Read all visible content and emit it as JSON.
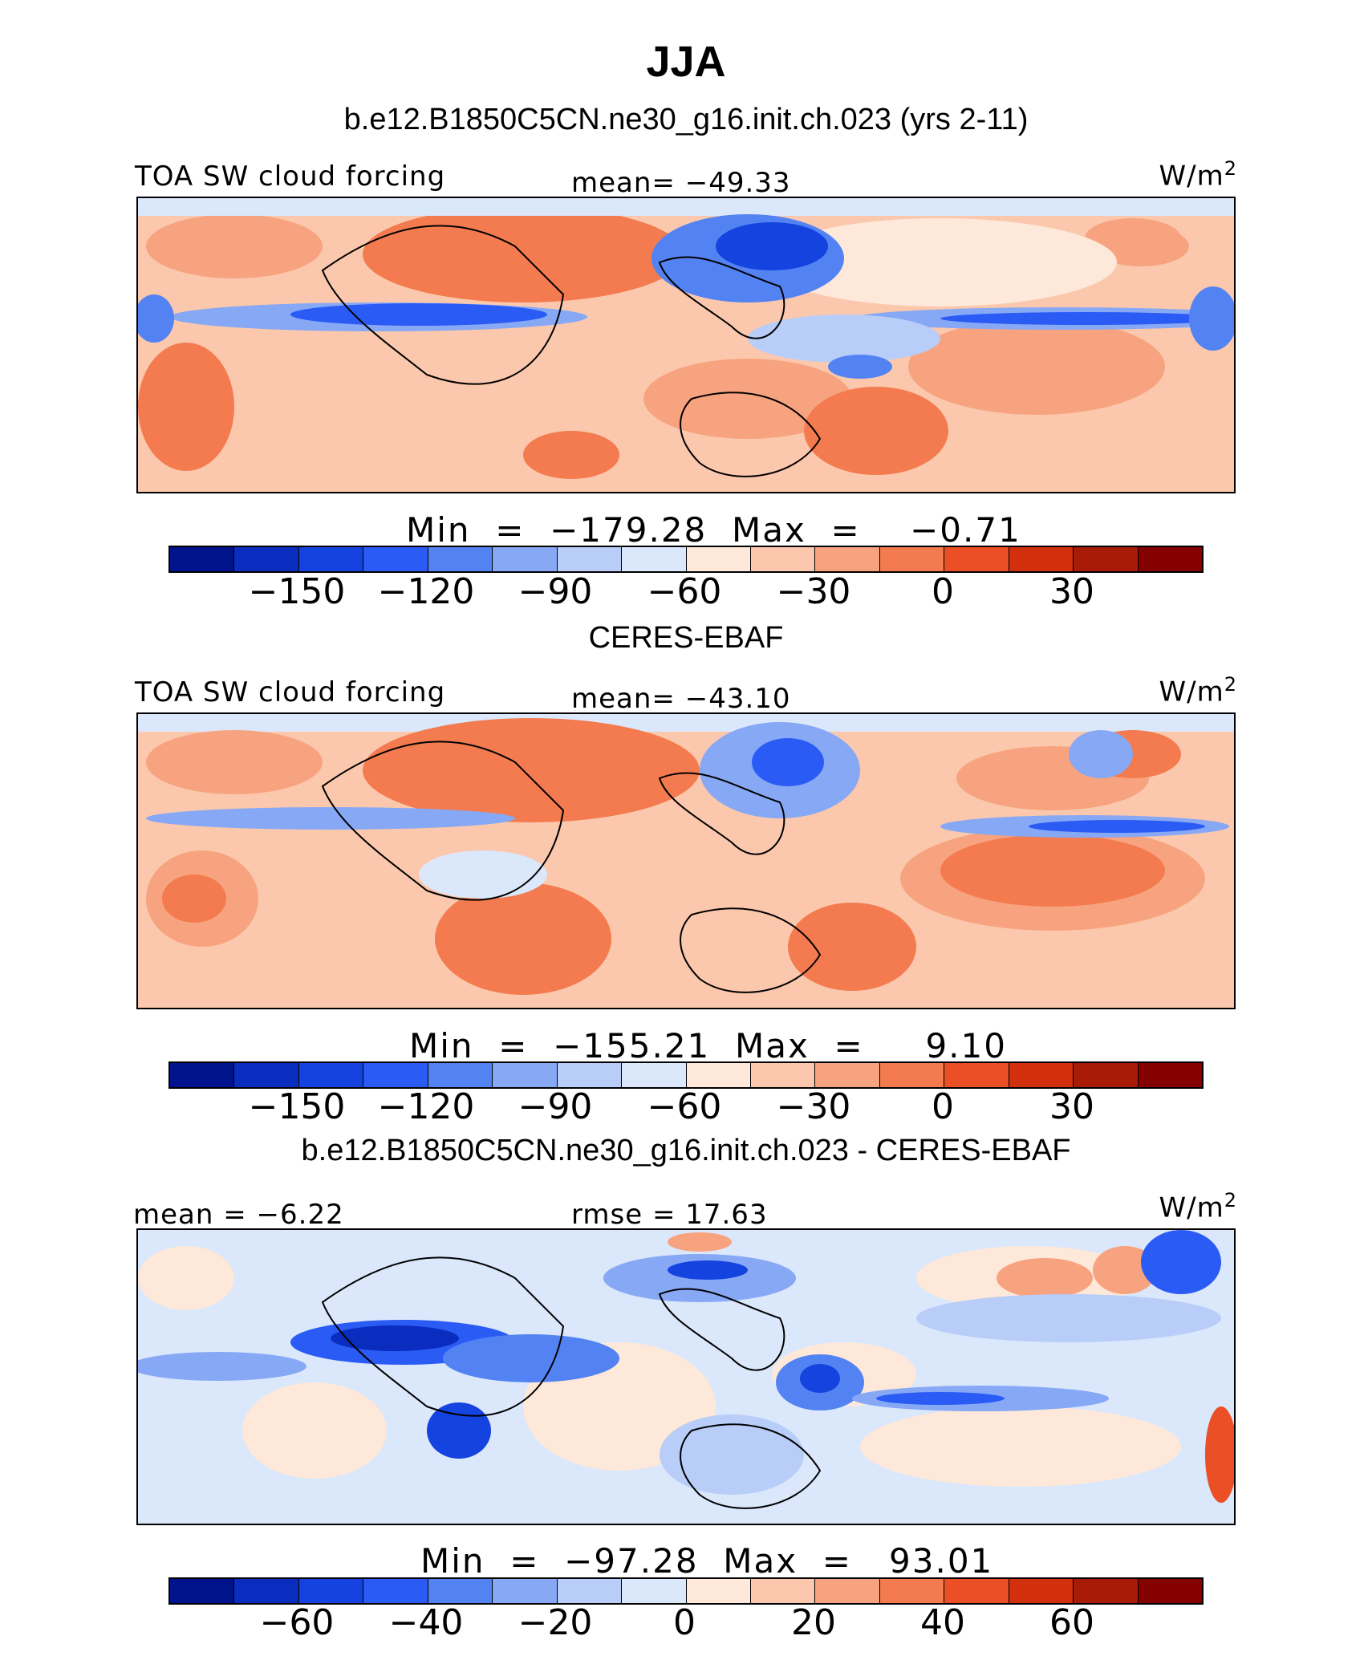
{
  "title": "JJA",
  "panels": [
    {
      "subtitle": "b.e12.B1850C5CN.ne30_g16.init.ch.023 (yrs 2-11)",
      "left_label": "TOA SW cloud forcing",
      "center_label": "mean= −49.33",
      "units_base": "W/m",
      "units_exp": "2",
      "minmax": "Min  =  −179.28  Max  =    −0.71",
      "min": -179.28,
      "max": -0.71,
      "mean": -49.33,
      "colorbar_ticks": [
        "−150",
        "−120",
        "−90",
        "−60",
        "−30",
        "0",
        "30"
      ]
    },
    {
      "subtitle": "CERES-EBAF",
      "left_label": "TOA SW cloud forcing",
      "center_label": "mean= −43.10",
      "units_base": "W/m",
      "units_exp": "2",
      "minmax": "Min  =  −155.21  Max  =     9.10",
      "min": -155.21,
      "max": 9.1,
      "mean": -43.1,
      "colorbar_ticks": [
        "−150",
        "−120",
        "−90",
        "−60",
        "−30",
        "0",
        "30"
      ]
    },
    {
      "subtitle": "b.e12.B1850C5CN.ne30_g16.init.ch.023 - CERES-EBAF",
      "left_label": "mean  =   −6.22",
      "center_label": "rmse  =   17.63",
      "units_base": "W/m",
      "units_exp": "2",
      "minmax": "Min  =  −97.28  Max  =   93.01",
      "min": -97.28,
      "max": 93.01,
      "mean": -6.22,
      "rmse": 17.63,
      "colorbar_ticks": [
        "−60",
        "−40",
        "−20",
        "0",
        "20",
        "40",
        "60"
      ]
    }
  ],
  "colorbar_colors": [
    "#00138c",
    "#0a2dbf",
    "#1443e0",
    "#2a5cf5",
    "#5383f2",
    "#86a8f5",
    "#b8cdf8",
    "#dbe7fb",
    "#fde8d9",
    "#fbc8ad",
    "#f8a37f",
    "#f37b4f",
    "#ea4f25",
    "#d22f0d",
    "#a81b06",
    "#850000"
  ]
}
